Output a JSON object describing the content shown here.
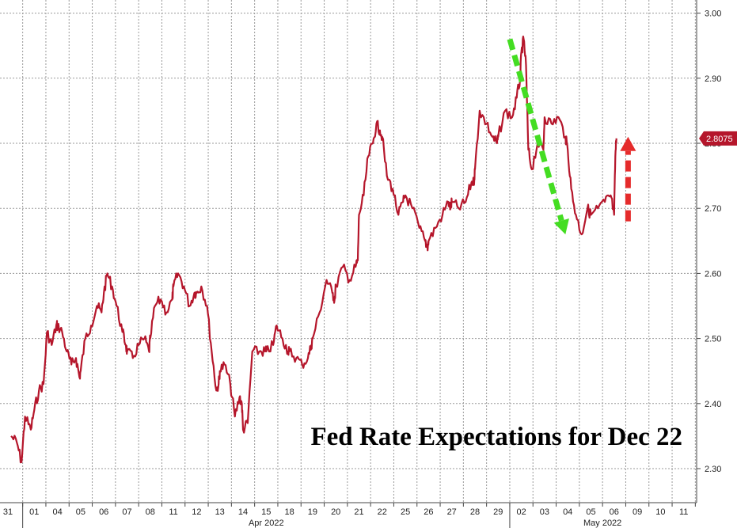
{
  "chart_data": {
    "type": "line",
    "title": "Fed Rate Expectations for Dec 22",
    "y_ticks": [
      "2.30",
      "2.40",
      "2.50",
      "2.60",
      "2.70",
      "2.80",
      "2.90",
      "3.00"
    ],
    "ylim": [
      2.25,
      3.02
    ],
    "grid": true,
    "x_ticks": [
      "31",
      "01",
      "04",
      "05",
      "06",
      "07",
      "08",
      "11",
      "12",
      "13",
      "14",
      "15",
      "18",
      "19",
      "20",
      "21",
      "22",
      "25",
      "26",
      "27",
      "28",
      "29",
      "02",
      "03",
      "04",
      "05",
      "06",
      "09",
      "10",
      "11"
    ],
    "months": [
      {
        "label": "Apr 2022",
        "start_index": 1,
        "end_index": 21
      },
      {
        "label": "May 2022",
        "start_index": 22,
        "end_index": 29
      }
    ],
    "last_value_label": "2.8075",
    "last_value": 2.8075,
    "series": [
      {
        "color": "#b5162b",
        "points": [
          [
            0.0,
            2.35
          ],
          [
            0.25,
            2.34
          ],
          [
            0.45,
            2.31
          ],
          [
            0.6,
            2.38
          ],
          [
            0.85,
            2.36
          ],
          [
            1.0,
            2.39
          ],
          [
            1.2,
            2.42
          ],
          [
            1.4,
            2.43
          ],
          [
            1.55,
            2.51
          ],
          [
            1.75,
            2.49
          ],
          [
            1.95,
            2.52
          ],
          [
            2.0,
            2.52
          ],
          [
            2.2,
            2.51
          ],
          [
            2.4,
            2.48
          ],
          [
            2.6,
            2.46
          ],
          [
            2.8,
            2.47
          ],
          [
            2.95,
            2.44
          ],
          [
            3.0,
            2.45
          ],
          [
            3.2,
            2.5
          ],
          [
            3.45,
            2.52
          ],
          [
            3.7,
            2.55
          ],
          [
            3.9,
            2.54
          ],
          [
            4.0,
            2.57
          ],
          [
            4.15,
            2.6
          ],
          [
            4.35,
            2.58
          ],
          [
            4.55,
            2.55
          ],
          [
            4.8,
            2.51
          ],
          [
            4.95,
            2.49
          ],
          [
            5.0,
            2.48
          ],
          [
            5.25,
            2.47
          ],
          [
            5.5,
            2.49
          ],
          [
            5.75,
            2.5
          ],
          [
            5.95,
            2.48
          ],
          [
            6.0,
            2.5
          ],
          [
            6.2,
            2.55
          ],
          [
            6.45,
            2.56
          ],
          [
            6.7,
            2.54
          ],
          [
            6.95,
            2.56
          ],
          [
            7.0,
            2.58
          ],
          [
            7.2,
            2.6
          ],
          [
            7.45,
            2.58
          ],
          [
            7.7,
            2.55
          ],
          [
            7.9,
            2.57
          ],
          [
            8.0,
            2.57
          ],
          [
            8.2,
            2.58
          ],
          [
            8.45,
            2.55
          ],
          [
            8.65,
            2.48
          ],
          [
            8.85,
            2.42
          ],
          [
            8.95,
            2.43
          ],
          [
            9.0,
            2.45
          ],
          [
            9.2,
            2.46
          ],
          [
            9.45,
            2.43
          ],
          [
            9.65,
            2.38
          ],
          [
            9.85,
            2.41
          ],
          [
            9.95,
            2.4
          ],
          [
            10.0,
            2.36
          ],
          [
            10.2,
            2.37
          ],
          [
            10.4,
            2.48
          ],
          [
            10.7,
            2.48
          ],
          [
            10.95,
            2.48
          ],
          [
            11.0,
            2.48
          ],
          [
            11.3,
            2.49
          ],
          [
            11.45,
            2.52
          ],
          [
            11.7,
            2.5
          ],
          [
            11.95,
            2.48
          ],
          [
            12.0,
            2.48
          ],
          [
            12.3,
            2.47
          ],
          [
            12.55,
            2.46
          ],
          [
            12.8,
            2.47
          ],
          [
            12.95,
            2.49
          ],
          [
            13.0,
            2.5
          ],
          [
            13.3,
            2.54
          ],
          [
            13.6,
            2.59
          ],
          [
            13.85,
            2.57
          ],
          [
            13.95,
            2.56
          ],
          [
            14.0,
            2.58
          ],
          [
            14.3,
            2.61
          ],
          [
            14.6,
            2.59
          ],
          [
            14.85,
            2.61
          ],
          [
            14.95,
            2.62
          ],
          [
            15.0,
            2.69
          ],
          [
            15.2,
            2.72
          ],
          [
            15.4,
            2.78
          ],
          [
            15.6,
            2.8
          ],
          [
            15.75,
            2.83
          ],
          [
            15.9,
            2.82
          ],
          [
            16.0,
            2.81
          ],
          [
            16.2,
            2.75
          ],
          [
            16.45,
            2.73
          ],
          [
            16.7,
            2.69
          ],
          [
            16.9,
            2.71
          ],
          [
            17.0,
            2.72
          ],
          [
            17.3,
            2.7
          ],
          [
            17.6,
            2.67
          ],
          [
            17.85,
            2.65
          ],
          [
            17.95,
            2.64
          ],
          [
            18.0,
            2.65
          ],
          [
            18.3,
            2.67
          ],
          [
            18.6,
            2.69
          ],
          [
            18.85,
            2.71
          ],
          [
            18.95,
            2.7
          ],
          [
            19.0,
            2.71
          ],
          [
            19.3,
            2.7
          ],
          [
            19.6,
            2.71
          ],
          [
            19.85,
            2.74
          ],
          [
            19.95,
            2.74
          ],
          [
            20.0,
            2.76
          ],
          [
            20.2,
            2.85
          ],
          [
            20.5,
            2.83
          ],
          [
            20.75,
            2.81
          ],
          [
            20.95,
            2.8
          ],
          [
            21.0,
            2.81
          ],
          [
            21.3,
            2.85
          ],
          [
            21.6,
            2.84
          ],
          [
            21.8,
            2.87
          ],
          [
            21.95,
            2.9
          ],
          [
            22.0,
            2.94
          ],
          [
            22.1,
            2.96
          ],
          [
            22.2,
            2.92
          ],
          [
            22.3,
            2.79
          ],
          [
            22.45,
            2.76
          ],
          [
            22.7,
            2.8
          ],
          [
            22.95,
            2.79
          ],
          [
            23.0,
            2.84
          ],
          [
            23.3,
            2.83
          ],
          [
            23.6,
            2.84
          ],
          [
            23.9,
            2.81
          ],
          [
            24.0,
            2.79
          ],
          [
            24.15,
            2.73
          ],
          [
            24.35,
            2.69
          ],
          [
            24.6,
            2.66
          ],
          [
            24.85,
            2.7
          ],
          [
            25.0,
            2.69
          ],
          [
            25.3,
            2.7
          ],
          [
            25.6,
            2.71
          ],
          [
            25.85,
            2.72
          ],
          [
            26.0,
            2.69
          ],
          [
            26.05,
            2.78
          ],
          [
            26.1,
            2.8075
          ]
        ]
      }
    ],
    "annotations": [
      {
        "type": "arrow",
        "direction": "down",
        "color": "#44dd22",
        "style": "dashed",
        "from": [
          21.5,
          2.96
        ],
        "to": [
          23.9,
          2.66
        ]
      },
      {
        "type": "arrow",
        "direction": "up",
        "color": "#e52b2b",
        "style": "dashed",
        "from": [
          26.6,
          2.68
        ],
        "to": [
          26.6,
          2.81
        ]
      }
    ]
  }
}
